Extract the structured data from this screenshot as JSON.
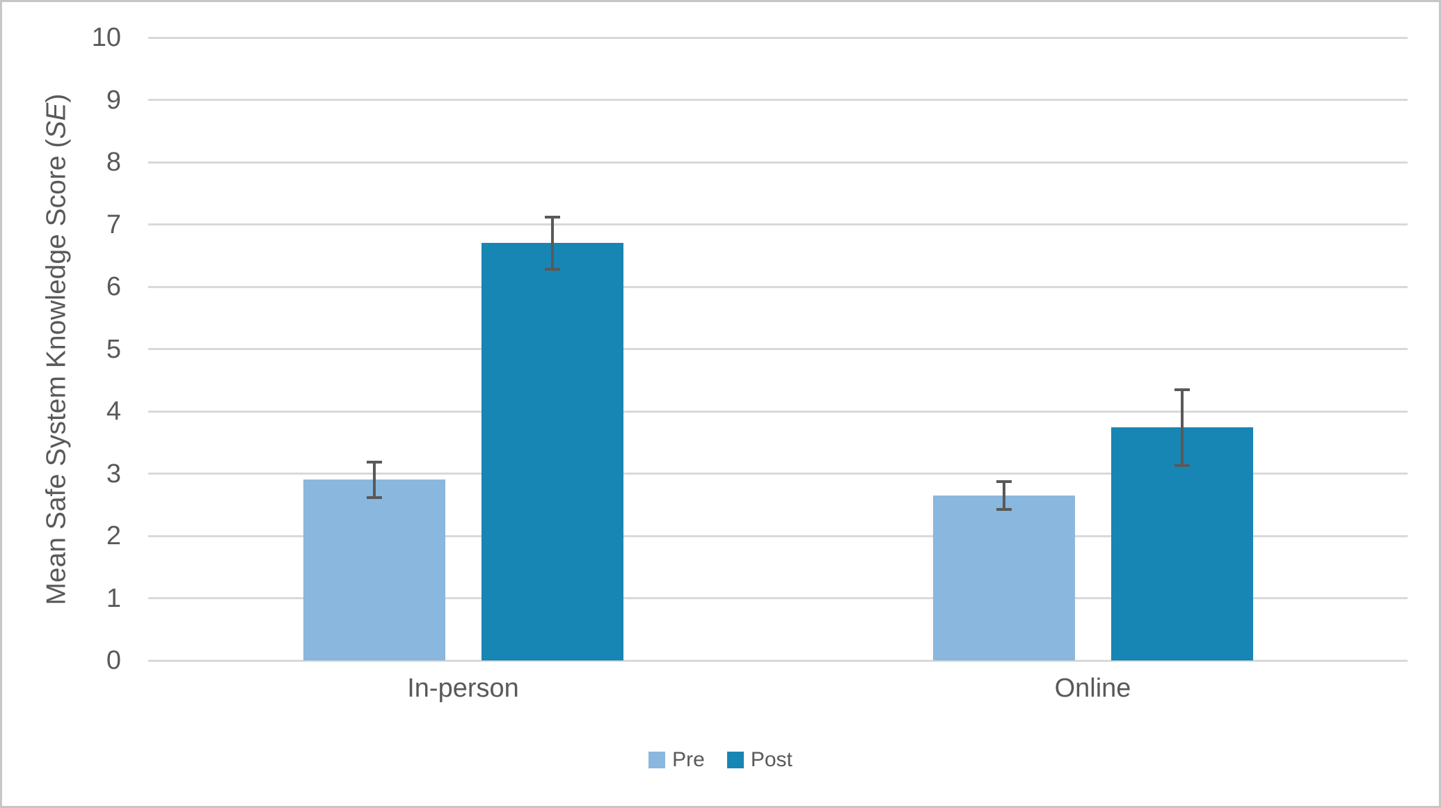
{
  "chart_data": {
    "type": "bar",
    "title": "",
    "categories": [
      "In-person",
      "Online"
    ],
    "series": [
      {
        "name": "Pre",
        "color": "#8AB7DD",
        "values": [
          2.9,
          2.65
        ],
        "se": [
          0.28,
          0.22
        ]
      },
      {
        "name": "Post",
        "color": "#1786B4",
        "values": [
          6.7,
          3.74
        ],
        "se": [
          0.42,
          0.61
        ]
      }
    ],
    "ylabel": "Mean Safe System Knowledge Score (SE)",
    "ylabel_prefix": "Mean Safe System Knowledge Score (",
    "ylabel_italic": "SE",
    "ylabel_suffix": ")",
    "xlabel": "",
    "ylim": [
      0,
      10
    ],
    "ytick_step": 1,
    "yticks": [
      "0",
      "1",
      "2",
      "3",
      "4",
      "5",
      "6",
      "7",
      "8",
      "9",
      "10"
    ],
    "grid": "horizontal-only",
    "legend_position": "bottom-center",
    "error_bars": "plus-minus-SE-with-caps",
    "colors": {
      "text": "#595959",
      "gridline": "#D9D9D9",
      "error_bar": "#595959",
      "canvas_border": "#C6C6C6",
      "background": "#FFFFFF"
    }
  }
}
